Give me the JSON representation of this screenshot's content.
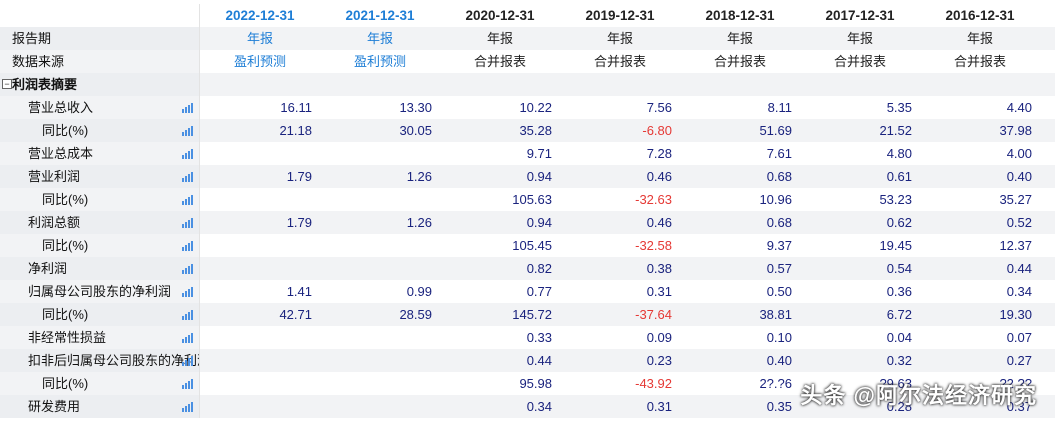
{
  "header": {
    "years": [
      "2022-12-31",
      "2021-12-31",
      "2020-12-31",
      "2019-12-31",
      "2018-12-31",
      "2017-12-31",
      "2016-12-31"
    ],
    "blue_cols": [
      0,
      1
    ]
  },
  "report_period": {
    "label": "报告期",
    "values": [
      "年报",
      "年报",
      "年报",
      "年报",
      "年报",
      "年报",
      "年报"
    ]
  },
  "data_source": {
    "label": "数据来源",
    "values": [
      "盈利预测",
      "盈利预测",
      "合并报表",
      "合并报表",
      "合并报表",
      "合并报表",
      "合并报表"
    ]
  },
  "section": {
    "label": "利润表摘要",
    "toggle": "−"
  },
  "rows": [
    {
      "label": "营业总收入",
      "level": 1,
      "values": [
        "16.11",
        "13.30",
        "10.22",
        "7.56",
        "8.11",
        "5.35",
        "4.40"
      ]
    },
    {
      "label": "同比(%)",
      "level": 2,
      "values": [
        "21.18",
        "30.05",
        "35.28",
        "-6.80",
        "51.69",
        "21.52",
        "37.98"
      ]
    },
    {
      "label": "营业总成本",
      "level": 1,
      "values": [
        "",
        "",
        "9.71",
        "7.28",
        "7.61",
        "4.80",
        "4.00"
      ]
    },
    {
      "label": "营业利润",
      "level": 1,
      "values": [
        "1.79",
        "1.26",
        "0.94",
        "0.46",
        "0.68",
        "0.61",
        "0.40"
      ]
    },
    {
      "label": "同比(%)",
      "level": 2,
      "values": [
        "",
        "",
        "105.63",
        "-32.63",
        "10.96",
        "53.23",
        "35.27"
      ]
    },
    {
      "label": "利润总额",
      "level": 1,
      "values": [
        "1.79",
        "1.26",
        "0.94",
        "0.46",
        "0.68",
        "0.62",
        "0.52"
      ]
    },
    {
      "label": "同比(%)",
      "level": 2,
      "values": [
        "",
        "",
        "105.45",
        "-32.58",
        "9.37",
        "19.45",
        "12.37"
      ]
    },
    {
      "label": "净利润",
      "level": 1,
      "values": [
        "",
        "",
        "0.82",
        "0.38",
        "0.57",
        "0.54",
        "0.44"
      ]
    },
    {
      "label": "归属母公司股东的净利润",
      "level": 1,
      "values": [
        "1.41",
        "0.99",
        "0.77",
        "0.31",
        "0.50",
        "0.36",
        "0.34"
      ]
    },
    {
      "label": "同比(%)",
      "level": 2,
      "values": [
        "42.71",
        "28.59",
        "145.72",
        "-37.64",
        "38.81",
        "6.72",
        "19.30"
      ]
    },
    {
      "label": "非经常性损益",
      "level": 1,
      "values": [
        "",
        "",
        "0.33",
        "0.09",
        "0.10",
        "0.04",
        "0.07"
      ]
    },
    {
      "label": "扣非后归属母公司股东的净利润",
      "level": 1,
      "values": [
        "",
        "",
        "0.44",
        "0.23",
        "0.40",
        "0.32",
        "0.27"
      ]
    },
    {
      "label": "同比(%)",
      "level": 2,
      "values": [
        "",
        "",
        "95.98",
        "-43.92",
        "2?.?6",
        "?9.63",
        "?2.??"
      ]
    },
    {
      "label": "研发费用",
      "level": 1,
      "values": [
        "",
        "",
        "0.34",
        "0.31",
        "0.35",
        "0.28",
        "0.37"
      ]
    }
  ],
  "watermark": "头条 @阿尔法经济研究"
}
